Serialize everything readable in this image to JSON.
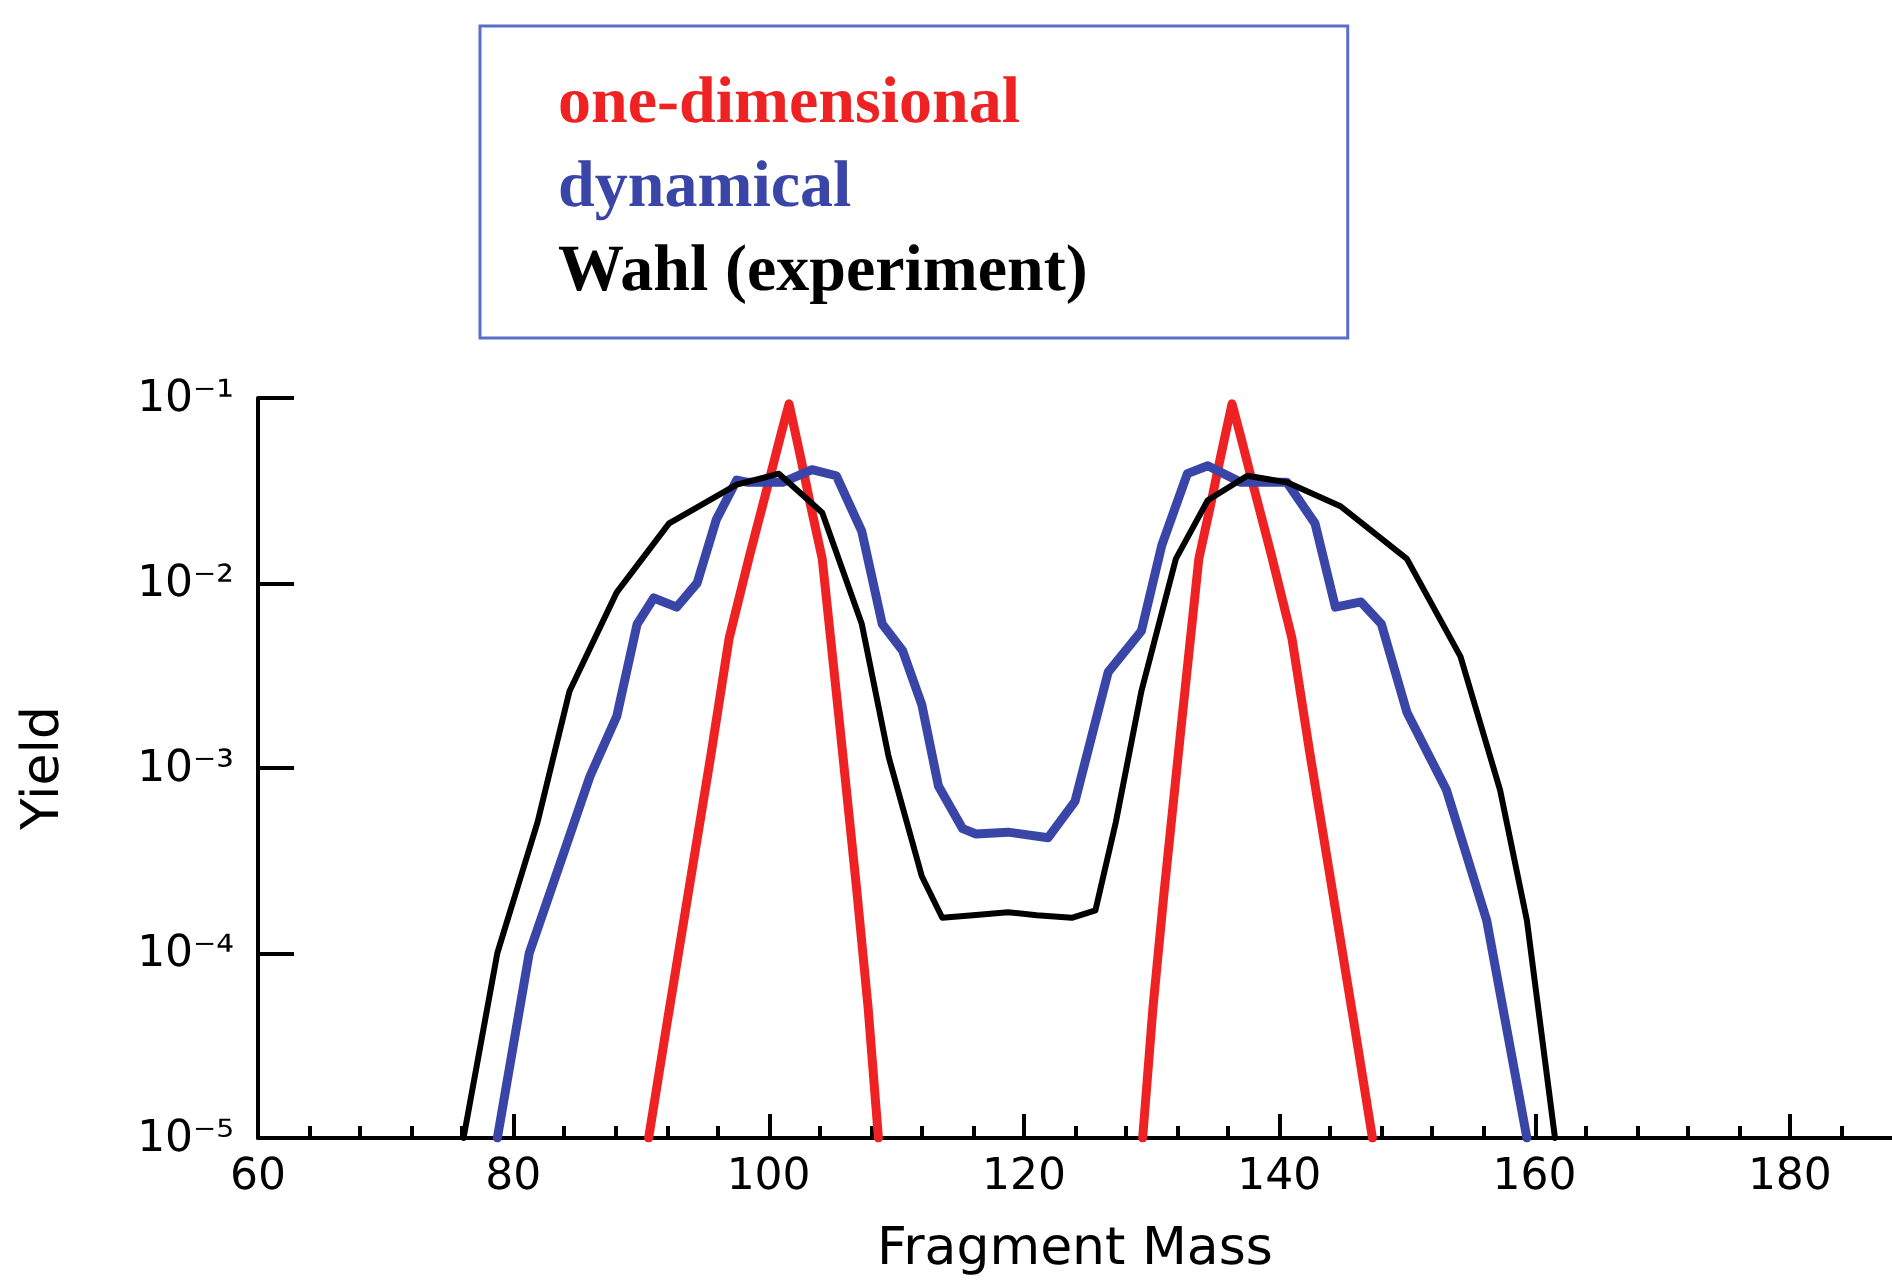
{
  "chart_data": {
    "type": "line",
    "xlabel": "Fragment Mass",
    "ylabel": "Yield",
    "log": "y",
    "grid": false,
    "marker": "none",
    "legend": "top",
    "xlim": [
      60,
      188
    ],
    "xticks": [
      60,
      {
        "value": 64,
        "label": null
      },
      {
        "value": 68,
        "label": null
      },
      {
        "value": 72,
        "label": null
      },
      {
        "value": 76,
        "label": null
      },
      80,
      {
        "value": 84,
        "label": null
      },
      {
        "value": 88,
        "label": null
      },
      {
        "value": 92,
        "label": null
      },
      {
        "value": 96,
        "label": null
      },
      100,
      {
        "value": 104,
        "label": null
      },
      {
        "value": 108,
        "label": null
      },
      {
        "value": 112,
        "label": null
      },
      {
        "value": 116,
        "label": null
      },
      120,
      {
        "value": 124,
        "label": null
      },
      {
        "value": 128,
        "label": null
      },
      {
        "value": 132,
        "label": null
      },
      {
        "value": 136,
        "label": null
      },
      140,
      {
        "value": 144,
        "label": null
      },
      {
        "value": 148,
        "label": null
      },
      {
        "value": 152,
        "label": null
      },
      {
        "value": 156,
        "label": null
      },
      160,
      {
        "value": 164,
        "label": null
      },
      {
        "value": 168,
        "label": null
      },
      {
        "value": 172,
        "label": null
      },
      {
        "value": 176,
        "label": null
      },
      180,
      {
        "value": 184,
        "label": null
      }
    ],
    "ylim": [
      1e-05,
      0.1
    ],
    "yticks": [
      {
        "value": 1e-05,
        "label": "10⁻⁵"
      },
      {
        "value": 0.0001,
        "label": "10⁻⁴"
      },
      {
        "value": 0.001,
        "label": "10⁻³"
      },
      {
        "value": 0.01,
        "label": "10⁻²"
      },
      {
        "value": 0.1,
        "label": "10⁻¹"
      }
    ],
    "series": [
      {
        "name": "one-dimensional",
        "color": "#ee2222",
        "x": [
          90.6,
          92,
          93.75,
          95.5,
          96.9,
          98.5,
          100,
          101,
          101.6,
          102.5,
          103.3,
          104.2,
          105.5,
          106.9,
          107.8,
          108.6,
          null,
          129.3,
          130.1,
          131,
          132.4,
          133.7,
          134.6,
          135.4,
          136.3,
          136.9,
          137.9,
          139.4,
          141,
          142.4,
          144.15,
          145.9,
          147.3
        ],
        "values": [
          1e-05,
          4e-05,
          0.00022,
          0.0012,
          0.005,
          0.014,
          0.035,
          0.065,
          0.093,
          0.048,
          0.026,
          0.0135,
          0.0019,
          0.00022,
          5e-05,
          1e-05,
          null,
          1e-05,
          5e-05,
          0.00022,
          0.0019,
          0.0135,
          0.026,
          0.048,
          0.093,
          0.065,
          0.035,
          0.014,
          0.005,
          0.0012,
          0.00022,
          4e-05,
          1e-05
        ]
      },
      {
        "name": "dynamical",
        "color": "#3a45a8",
        "x": [
          78.75,
          81.25,
          83.9,
          86,
          88.1,
          89.7,
          91,
          92.8,
          94.4,
          95.9,
          97.5,
          98.4,
          101.1,
          103.4,
          105.3,
          107.3,
          108.9,
          110.5,
          112,
          113.3,
          115.2,
          116.25,
          118.75,
          121.9,
          124,
          126.6,
          129.2,
          130.8,
          132.8,
          134.4,
          137,
          140.6,
          142.8,
          144.4,
          146.4,
          148,
          150,
          153.1,
          156.25,
          159.4
        ],
        "values": [
          1e-05,
          0.0001,
          0.00034,
          0.0009,
          0.0019,
          0.006,
          0.0083,
          0.0074,
          0.01,
          0.022,
          0.036,
          0.035,
          0.035,
          0.041,
          0.038,
          0.019,
          0.006,
          0.0043,
          0.0022,
          0.0008,
          0.00047,
          0.00044,
          0.00045,
          0.00042,
          0.00066,
          0.0033,
          0.0055,
          0.016,
          0.039,
          0.043,
          0.035,
          0.035,
          0.021,
          0.0074,
          0.0079,
          0.006,
          0.002,
          0.00076,
          0.00015,
          1e-05
        ]
      },
      {
        "name": "Wahl (experiment)",
        "color": "#000000",
        "x": [
          76.1,
          78.75,
          81.9,
          84.4,
          88.1,
          92.2,
          97.5,
          100.8,
          104.2,
          107.3,
          109.4,
          112,
          113.6,
          116,
          118.75,
          121,
          123.75,
          125.6,
          127.2,
          129.2,
          131.9,
          134.4,
          137.5,
          140.6,
          144.8,
          150,
          154.2,
          157.3,
          159.4,
          161.6
        ],
        "values": [
          1e-05,
          0.0001,
          0.00051,
          0.0026,
          0.0089,
          0.021,
          0.034,
          0.039,
          0.024,
          0.006,
          0.00115,
          0.00026,
          0.000155,
          0.00016,
          0.000166,
          0.00016,
          0.000155,
          0.00017,
          0.00051,
          0.0026,
          0.0135,
          0.028,
          0.038,
          0.035,
          0.026,
          0.0135,
          0.004,
          0.00076,
          0.00015,
          1e-05
        ]
      }
    ]
  }
}
